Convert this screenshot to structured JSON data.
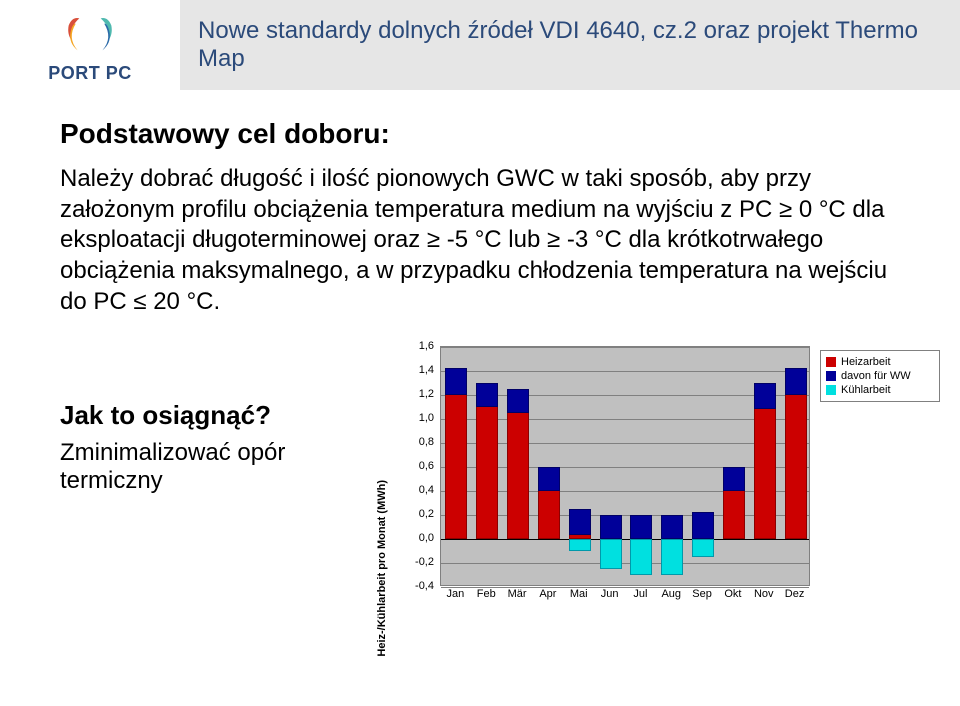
{
  "header": {
    "logo_text": "PORT PC",
    "title": "Nowe standardy dolnych źródeł VDI 4640, cz.2 oraz projekt Thermo Map"
  },
  "content": {
    "subtitle": "Podstawowy cel doboru:",
    "body": "Należy dobrać długość i ilość pionowych GWC w taki sposób, aby przy założonym profilu obciążenia temperatura medium na wyjściu z PC ≥ 0 °C dla eksploatacji długoterminowej oraz ≥ -5 °C lub ≥ -3 °C dla krótkotrwałego obciążenia maksymalnego, a w przypadku chłodzenia temperatura na wejściu do PC ≤ 20 °C.",
    "q1": "Jak to osiągnąć?",
    "q2": "Zminimalizować opór termiczny"
  },
  "chart": {
    "type": "bar",
    "y_label": "Heiz-/Kühlarbeit pro Monat (MWh)",
    "y_min": -0.4,
    "y_max": 1.6,
    "y_step": 0.2,
    "y_ticks": [
      "1,6",
      "1,4",
      "1,2",
      "1,0",
      "0,8",
      "0,6",
      "0,4",
      "0,2",
      "0,0",
      "-0,2",
      "-0,4"
    ],
    "months": [
      "Jan",
      "Feb",
      "Mär",
      "Apr",
      "Mai",
      "Jun",
      "Jul",
      "Aug",
      "Sep",
      "Okt",
      "Nov",
      "Dez"
    ],
    "heiz": [
      1.42,
      1.3,
      1.25,
      0.6,
      0.25,
      0.2,
      0.2,
      0.2,
      0.22,
      0.6,
      1.3,
      1.42
    ],
    "ww_top": [
      0.22,
      0.2,
      0.2,
      0.2,
      0.22,
      0.2,
      0.2,
      0.2,
      0.22,
      0.2,
      0.22,
      0.22
    ],
    "kuehl": [
      0.0,
      0.0,
      0.0,
      0.0,
      -0.1,
      -0.25,
      -0.3,
      -0.3,
      -0.15,
      0.0,
      0.0,
      0.0
    ],
    "colors": {
      "heiz": "#cc0000",
      "ww": "#000099",
      "kuehl": "#00e0e0",
      "plot_bg": "#c0c0c0",
      "grid": "#808080",
      "legend_bg": "#ffffff"
    },
    "legend": {
      "heiz": "Heizarbeit",
      "ww": "davon für WW",
      "kuehl": "Kühlarbeit"
    }
  },
  "logo_colors": {
    "red": "#d94f3a",
    "orange": "#f5a623",
    "teal": "#4fb9af",
    "blue": "#2b6aa8"
  }
}
